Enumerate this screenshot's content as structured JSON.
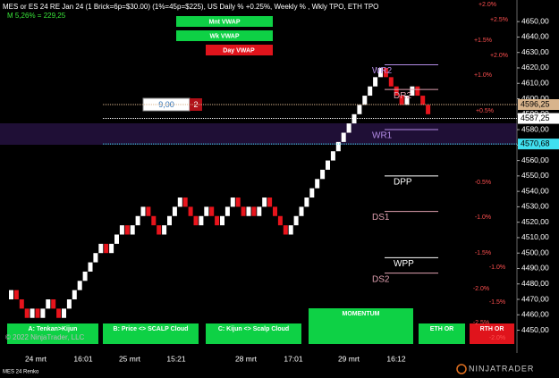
{
  "header": {
    "title": "MES or ES 24 RE Jan 24  (1 Brick=6p=$30.00) (1%=45p=$225), US Daily % +0.25%, Weekly % , Wkly TPO, ETH TPO",
    "subtitle": "M 5,26% = 229,25"
  },
  "vwap_buttons": [
    "Mnt VWAP",
    "Wk VWAP",
    "Day VWAP"
  ],
  "input": {
    "value": "9,00",
    "count": "2"
  },
  "signal_buttons": [
    "A: Tenkan>Kijun",
    "B: Price <> SCALP Cloud",
    "C: Kijun <> Scalp Cloud",
    "MOMENTUM",
    "ETH OR",
    "RTH OR"
  ],
  "percent_labels": [
    "+2.0%",
    "+2.5%",
    "+1.5%",
    "+2.0%",
    "+1.0%",
    "+0.5%",
    "-0.5%",
    "-1.0%",
    "-1.5%",
    "-1.0%",
    "-2.0%",
    "-1.5%",
    "-2.5%",
    "-2.0%"
  ],
  "footer": {
    "copyright": "© 2022 NinjaTrader, LLC",
    "instrument": "MES 24 Renko",
    "logo": "NINJATRADER"
  },
  "chart_data": {
    "type": "renko",
    "ylim": [
      4437,
      4664
    ],
    "yticks": [
      {
        "value": 4450,
        "label": "4450,00"
      },
      {
        "value": 4460,
        "label": "4460,00"
      },
      {
        "value": 4470,
        "label": "4470,00"
      },
      {
        "value": 4480,
        "label": "4480,00"
      },
      {
        "value": 4490,
        "label": "4490,00"
      },
      {
        "value": 4500,
        "label": "4500,00"
      },
      {
        "value": 4510,
        "label": "4510,00"
      },
      {
        "value": 4520,
        "label": "4520,00"
      },
      {
        "value": 4530,
        "label": "4530,00"
      },
      {
        "value": 4540,
        "label": "4540,00"
      },
      {
        "value": 4550,
        "label": "4550,00"
      },
      {
        "value": 4560,
        "label": "4560,00"
      },
      {
        "value": 4570,
        "label": "4570,00"
      },
      {
        "value": 4580,
        "label": "4580,00"
      },
      {
        "value": 4590,
        "label": "4590,00"
      },
      {
        "value": 4600,
        "label": "4600,00"
      },
      {
        "value": 4610,
        "label": "4610,00"
      },
      {
        "value": 4620,
        "label": "4620,00"
      },
      {
        "value": 4630,
        "label": "4630,00"
      },
      {
        "value": 4640,
        "label": "4640,00"
      },
      {
        "value": 4650,
        "label": "4650,00"
      }
    ],
    "x_labels": [
      "24 mrt",
      "16:01",
      "25 mrt",
      "15:21",
      "28 mrt",
      "17:01",
      "29 mrt",
      "16:12"
    ],
    "brick_size": 6,
    "up_color": "#ffffff",
    "down_color": "#e8141c",
    "bricks": [
      4476,
      4470,
      4464,
      4458,
      4464,
      4458,
      4464,
      4470,
      4464,
      4458,
      4464,
      4470,
      4476,
      4482,
      4488,
      4494,
      4500,
      4506,
      4500,
      4506,
      4512,
      4518,
      4512,
      4518,
      4524,
      4530,
      4524,
      4518,
      4512,
      4518,
      4524,
      4530,
      4536,
      4530,
      4524,
      4518,
      4524,
      4530,
      4524,
      4518,
      4524,
      4530,
      4536,
      4530,
      4524,
      4530,
      4524,
      4530,
      4536,
      4530,
      4524,
      4518,
      4512,
      4518,
      4524,
      4530,
      4536,
      4542,
      4548,
      4554,
      4560,
      4566,
      4572,
      4578,
      4584,
      4590,
      4596,
      4602,
      4608,
      4614,
      4620,
      4614,
      4608,
      4602,
      4596,
      4602,
      4608,
      4602,
      4596,
      4590
    ],
    "levels": [
      {
        "name": "WR2",
        "value": 4622,
        "color": "#b48ce6"
      },
      {
        "name": "DR2",
        "value": 4606,
        "color": "#e0a0b0"
      },
      {
        "name": "WR1",
        "value": 4580,
        "color": "#b48ce6"
      },
      {
        "name": "DPP",
        "value": 4550,
        "color": "#ffffff"
      },
      {
        "name": "DS1",
        "value": 4527,
        "color": "#e0a0b0"
      },
      {
        "name": "WPP",
        "value": 4497,
        "color": "#ffffff"
      },
      {
        "name": "DS2",
        "value": 4487,
        "color": "#e0a0b0"
      }
    ],
    "price_tags": [
      {
        "value": 4596.25,
        "label": "4596,25",
        "color": "#d8b48c"
      },
      {
        "value": 4587.25,
        "label": "4587,25",
        "color": "#ffffff"
      },
      {
        "value": 4570.68,
        "label": "4570,68",
        "color": "#40e0f0"
      }
    ]
  }
}
